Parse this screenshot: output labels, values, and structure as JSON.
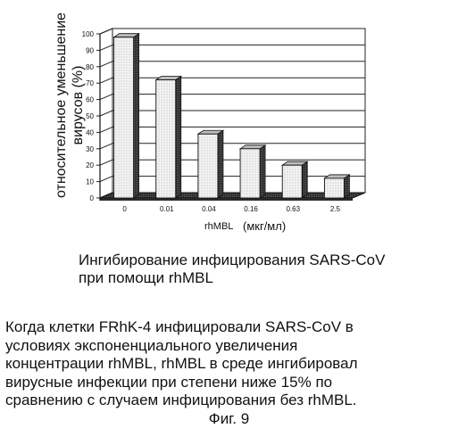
{
  "chart_data": {
    "type": "bar",
    "ylabel_line1": "относительное уменьшение",
    "ylabel_line2": "вирусов (%)",
    "xlabel_name": "rhMBL",
    "xlabel_unit": "(мкг/мл)",
    "categories": [
      "0",
      "0.01",
      "0.04",
      "0.16",
      "0.63",
      "2.5"
    ],
    "values": [
      98,
      72,
      39,
      30,
      20,
      12
    ],
    "yticks": [
      0,
      10,
      20,
      30,
      40,
      50,
      60,
      70,
      80,
      90,
      100
    ],
    "ylim": [
      0,
      100
    ],
    "grid": true,
    "style": "3d-bar"
  },
  "caption": {
    "line1": "Ингибирование инфицирования SARS-CoV",
    "line2": "при помощи rhMBL"
  },
  "description": {
    "line1": "Когда клетки FRhK-4 инфицировали SARS-CoV в",
    "line2": "условиях экспоненциального увеличения",
    "line3": "концентрации rhMBL, rhMBL в среде ингибировал",
    "line4": "вирусные инфекции при степени ниже 15% по",
    "line5": "сравнению с случаем инфицирования без rhMBL."
  },
  "figure_label": "Фиг. 9"
}
